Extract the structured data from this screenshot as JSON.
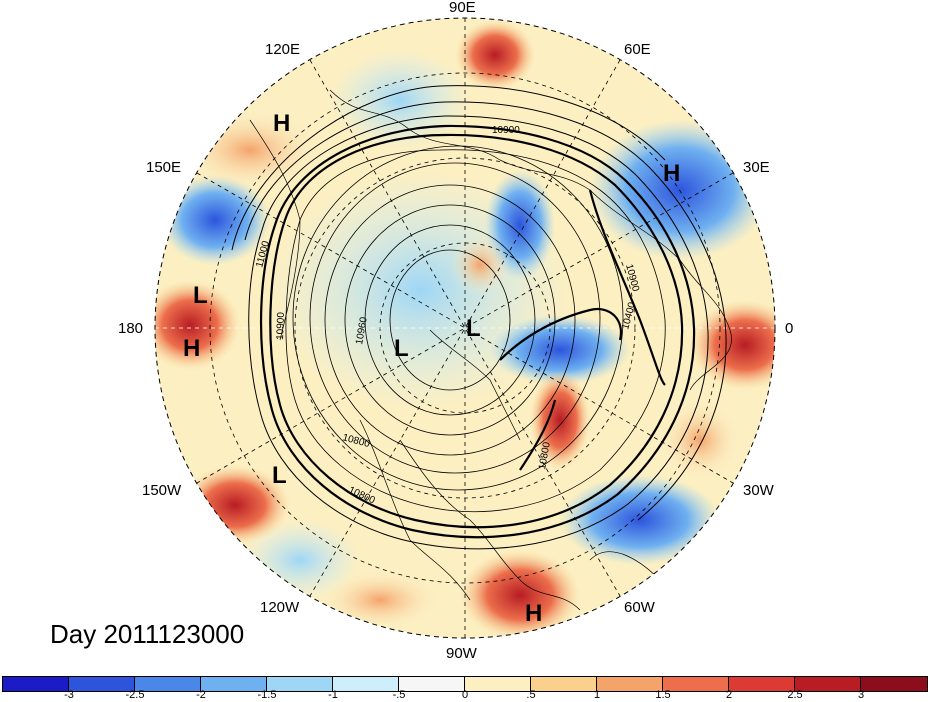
{
  "title": "Day 2011123000",
  "lon_labels": {
    "e90": "90E",
    "e60": "60E",
    "e120": "120E",
    "e30": "30E",
    "e150": "150E",
    "w180": "180",
    "zero": "0",
    "w150": "150W",
    "w30": "30W",
    "w120": "120W",
    "w60": "60W",
    "w90": "90W"
  },
  "pressure_labels": {
    "h_asia": "H",
    "h_europe": "H",
    "l_pacific": "L",
    "h_pacific": "H",
    "l_canada": "L",
    "l_arctic": "L",
    "l_gulf": "L",
    "h_atlantic": "H"
  },
  "contour_labels": [
    "10900",
    "11000",
    "10900",
    "10960",
    "10800",
    "10800",
    "10900",
    "10400",
    "10800"
  ],
  "colorbar": {
    "ticks": [
      "-3",
      "-2.5",
      "-2",
      "-1.5",
      "-1",
      "-.5",
      "0",
      ".5",
      "1",
      "1.5",
      "2",
      "2.5",
      "3"
    ],
    "colors": [
      "#1b1bc8",
      "#2d55dc",
      "#4a87e8",
      "#6fb0f0",
      "#9ed6f5",
      "#cdeefa",
      "#f6f6f6",
      "#fcefc2",
      "#f9d08c",
      "#f4a36a",
      "#ec6e4c",
      "#dc3a32",
      "#b81d24",
      "#8c0e1c"
    ]
  }
}
